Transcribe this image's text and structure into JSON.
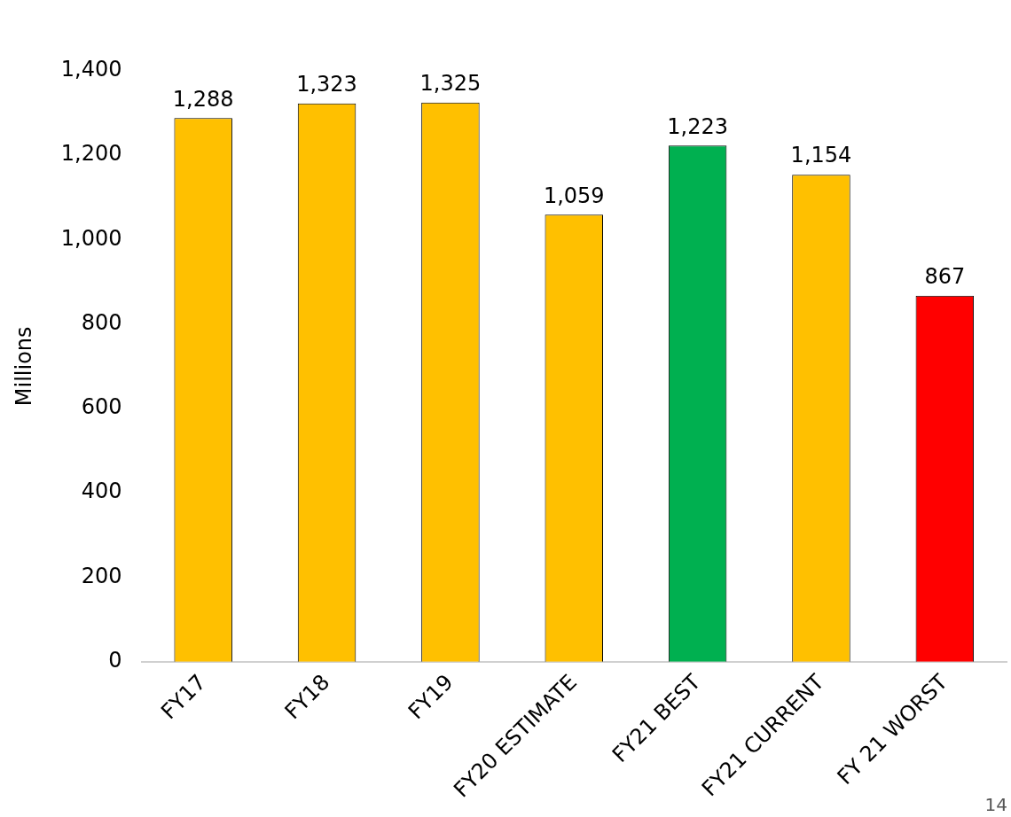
{
  "chart_data": {
    "type": "bar",
    "ylabel": "Millions",
    "categories": [
      "FY17",
      "FY18",
      "FY19",
      "FY20 ESTIMATE",
      "FY21 BEST",
      "FY21 CURRENT",
      "FY 21 WORST"
    ],
    "values": [
      1288,
      1323,
      1325,
      1059,
      1223,
      1154,
      867
    ],
    "value_labels": [
      "1,288",
      "1,323",
      "1,325",
      "1,059",
      "1,223",
      "1,154",
      "867"
    ],
    "colors": [
      "#ffc000",
      "#ffc000",
      "#ffc000",
      "#ffc000",
      "#00b050",
      "#ffc000",
      "#ff0000"
    ],
    "ylim": [
      0,
      1400
    ],
    "yticks": [
      0,
      200,
      400,
      600,
      800,
      {
        "value": 1000,
        "label": "1,000"
      },
      {
        "value": 1200,
        "label": "1,200"
      },
      {
        "value": 1400,
        "label": "1,400"
      }
    ],
    "grid": false,
    "legend": false,
    "annotations": [
      "14"
    ]
  }
}
